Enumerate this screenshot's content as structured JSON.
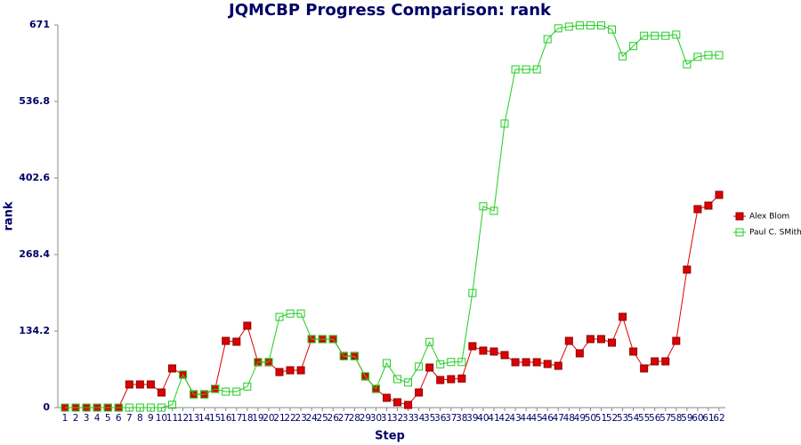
{
  "chart_data": {
    "type": "line",
    "title": "JQMCBP Progress Comparison: rank",
    "x_label": "Step",
    "y_label": "rank",
    "x": [
      1,
      2,
      3,
      4,
      5,
      6,
      7,
      8,
      9,
      10,
      11,
      12,
      13,
      14,
      15,
      16,
      17,
      18,
      19,
      20,
      21,
      22,
      23,
      24,
      25,
      26,
      27,
      28,
      29,
      30,
      31,
      32,
      33,
      34,
      35,
      36,
      37,
      38,
      39,
      40,
      41,
      42,
      43,
      44,
      45,
      46,
      47,
      48,
      49,
      50,
      51,
      52,
      53,
      54,
      55,
      56,
      57,
      58,
      59,
      60,
      61,
      62
    ],
    "xlim": [
      1,
      62
    ],
    "ylim": [
      0,
      671
    ],
    "yticks": [
      0,
      134.2,
      268.4,
      402.6,
      536.8,
      671
    ],
    "legend": "right",
    "series": [
      {
        "name": "Alex Blom",
        "color": "#dd0000",
        "marker": "filled-square",
        "values": [
          0,
          0,
          0,
          0,
          0,
          0,
          40.6,
          40.6,
          40.6,
          26.5,
          68.7,
          57.7,
          23.4,
          23.4,
          32.8,
          117,
          115.5,
          143.6,
          79.6,
          79.6,
          62.4,
          65.5,
          65.5,
          120.2,
          120.2,
          120.2,
          90.5,
          90.5,
          54.6,
          32.8,
          17.2,
          9.4,
          4.7,
          26.5,
          70.2,
          48.4,
          49.9,
          51,
          107.7,
          99.9,
          98.3,
          92.1,
          79.6,
          79.6,
          79.6,
          76.5,
          73.3,
          117,
          95.2,
          120.2,
          120.2,
          113.9,
          159.2,
          98.3,
          68.7,
          81.1,
          81.1,
          117,
          241.9,
          348,
          354.2,
          373
        ]
      },
      {
        "name": "Paul C. SMith",
        "color": "#22cc22",
        "marker": "open-square",
        "values": [
          0,
          0,
          0,
          0,
          0,
          0,
          0,
          0,
          0,
          0,
          5,
          58,
          23,
          23,
          33,
          28,
          28,
          37,
          80,
          80,
          159,
          165,
          165,
          120,
          120,
          120,
          90,
          90,
          55,
          33,
          78,
          50,
          44,
          72,
          115,
          76,
          80,
          80,
          201,
          353,
          345,
          498,
          593,
          593,
          593,
          646,
          665,
          668,
          670,
          670,
          670,
          663,
          616,
          634,
          652,
          652,
          652,
          654,
          602,
          615,
          618,
          618
        ]
      }
    ]
  }
}
